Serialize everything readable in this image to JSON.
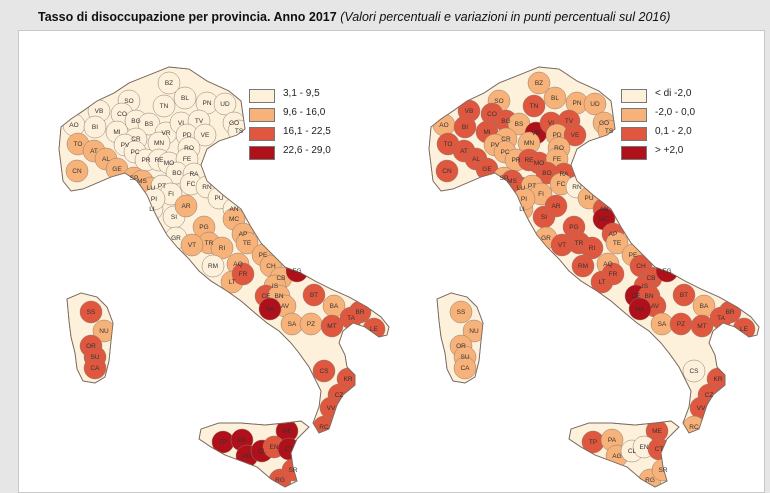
{
  "title": {
    "main": "Tasso di disoccupazione per provincia. Anno 2017",
    "sub": "(Valori percentuali e variazioni in punti percentuali sul 2016)"
  },
  "colors": {
    "c1": "#fdf1dc",
    "c2": "#f7b27a",
    "c3": "#e0573f",
    "c4": "#b0101a",
    "border": "#8a7a70"
  },
  "maps": [
    {
      "name": "Tasso di disoccupazione 2017",
      "legend": [
        {
          "label": "3,1 - 9,5",
          "color": "#fdf1dc"
        },
        {
          "label": "9,6 - 16,0",
          "color": "#f7b27a"
        },
        {
          "label": "16,1 - 22,5",
          "color": "#e0573f"
        },
        {
          "label": "22,6 - 29,0",
          "color": "#b0101a"
        }
      ],
      "labels": [
        "BZ",
        "SO",
        "TN",
        "BL",
        "PN",
        "UD",
        "AO",
        "VB",
        "CO",
        "BG",
        "BS",
        "VR",
        "VI",
        "TV",
        "GO",
        "TS",
        "TO",
        "BI",
        "MI",
        "CR",
        "PD",
        "VE",
        "RO",
        "MN",
        "CN",
        "AT",
        "AL",
        "PV",
        "PC",
        "PR",
        "RE",
        "MO",
        "FE",
        "BO",
        "RA",
        "GE",
        "SP",
        "MS",
        "LU",
        "PT",
        "FI",
        "FC",
        "RN",
        "PU",
        "AN",
        "LI",
        "PI",
        "SI",
        "AR",
        "PG",
        "MC",
        "AP",
        "TE",
        "GR",
        "TR",
        "VT",
        "RI",
        "PE",
        "CH",
        "RM",
        "AQ",
        "CB",
        "IS",
        "FG",
        "LT",
        "FR",
        "CE",
        "BN",
        "BT",
        "BA",
        "AV",
        "NA",
        "SA",
        "PZ",
        "MT",
        "BR",
        "TA",
        "LE",
        "SS",
        "NU",
        "OR",
        "SU",
        "CA",
        "CS",
        "KR",
        "CZ",
        "VV",
        "RC",
        "TP",
        "PA",
        "ME",
        "AG",
        "CL",
        "EN",
        "CT",
        "RG",
        "SR"
      ]
    },
    {
      "name": "Variazione sul 2016",
      "legend": [
        {
          "label": "< di -2,0",
          "color": "#fdf1dc"
        },
        {
          "label": "-2,0 - 0,0",
          "color": "#f7b27a"
        },
        {
          "label": "0,1 - 2,0",
          "color": "#e0573f"
        },
        {
          "label": "> +2,0",
          "color": "#b0101a"
        }
      ],
      "labels": [
        "BZ",
        "SO",
        "TN",
        "BL",
        "PN",
        "UD",
        "AO",
        "VB",
        "CO",
        "BG",
        "BS",
        "VR",
        "VI",
        "TV",
        "GO",
        "TS",
        "TO",
        "BI",
        "MI",
        "CR",
        "PD",
        "VE",
        "RO",
        "MN",
        "CN",
        "AT",
        "AL",
        "PV",
        "PC",
        "PR",
        "RE",
        "MO",
        "FE",
        "BO",
        "RA",
        "GE",
        "SP",
        "MS",
        "LU",
        "PT",
        "FI",
        "FC",
        "RN",
        "PU",
        "AN",
        "LI",
        "PI",
        "SI",
        "AR",
        "PG",
        "MC",
        "AP",
        "TE",
        "GR",
        "TR",
        "VT",
        "RI",
        "PE",
        "CH",
        "RM",
        "AQ",
        "CB",
        "IS",
        "FG",
        "LT",
        "FR",
        "CE",
        "BN",
        "BT",
        "BA",
        "AV",
        "NA",
        "SA",
        "PZ",
        "MT",
        "BR",
        "TA",
        "LE",
        "SS",
        "NU",
        "OR",
        "SU",
        "CA",
        "CS",
        "KR",
        "CZ",
        "VV",
        "RC",
        "TP",
        "PA",
        "ME",
        "AG",
        "CL",
        "EN",
        "CT",
        "RG",
        "SR"
      ]
    }
  ]
}
